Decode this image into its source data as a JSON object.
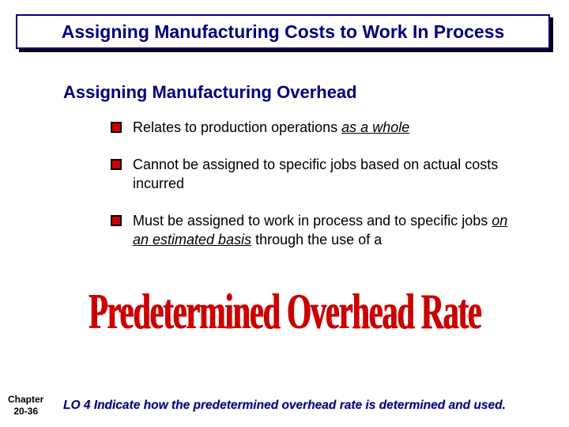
{
  "title": "Assigning Manufacturing Costs to Work In Process",
  "subtitle": "Assigning Manufacturing Overhead",
  "bullets": [
    {
      "pre": "Relates to production operations ",
      "emph": "as a whole",
      "post": ""
    },
    {
      "pre": "Cannot be assigned to specific jobs based on actual costs incurred",
      "emph": "",
      "post": ""
    },
    {
      "pre": "Must be assigned to work in process and to specific jobs ",
      "emph": "on an estimated basis",
      "post": " through the use of a"
    }
  ],
  "bigText": "Predetermined Overhead Rate",
  "chapter": {
    "line1": "Chapter",
    "line2": "20-36"
  },
  "lo": "LO 4 Indicate how the predetermined overhead rate is determined and used.",
  "colors": {
    "navy": "#000080",
    "red": "#cc0000",
    "bulletFill": "#cc0000",
    "bulletBorder": "#000000",
    "background": "#ffffff"
  }
}
